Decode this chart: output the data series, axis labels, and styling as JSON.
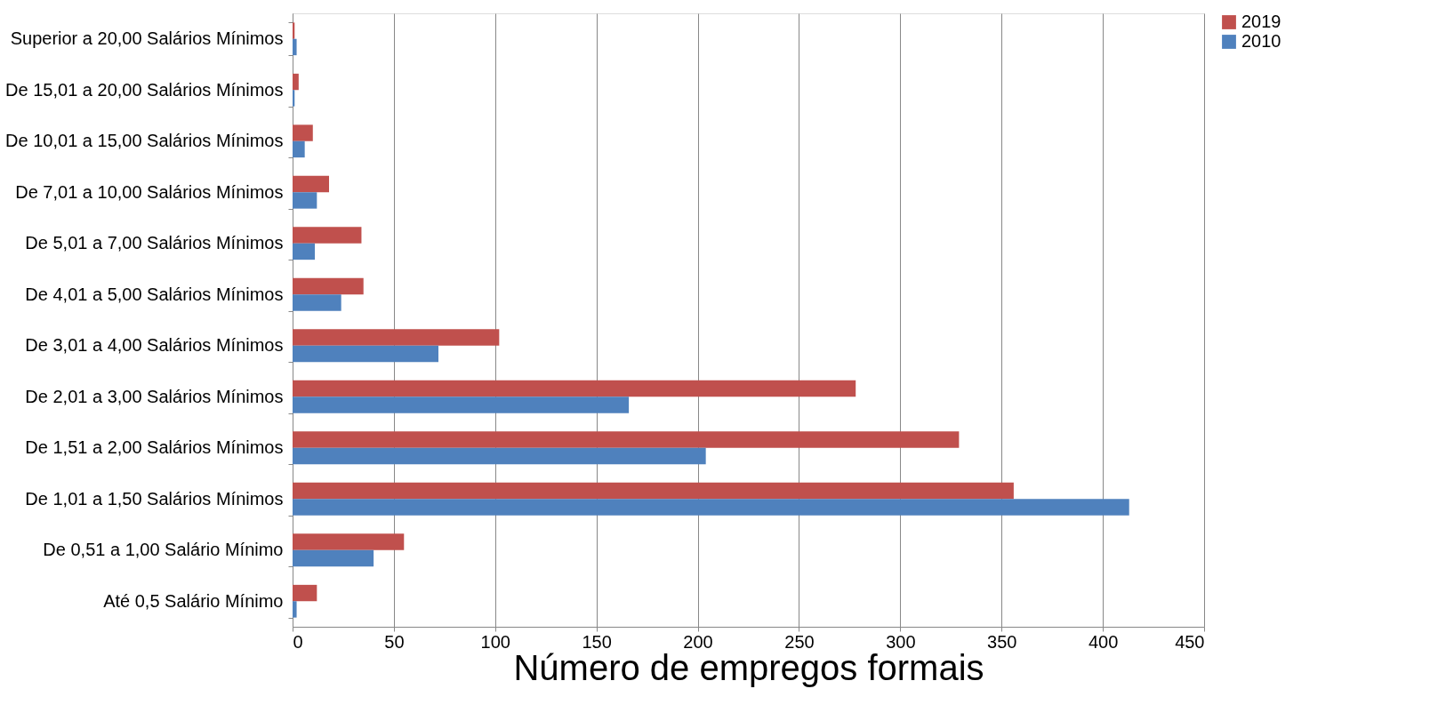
{
  "chart_data": {
    "type": "bar",
    "orientation": "horizontal",
    "xlabel": "Número de empregos formais",
    "categories": [
      "Superior a 20,00 Salários Mínimos",
      "De 15,01 a 20,00 Salários Mínimos",
      "De 10,01 a 15,00 Salários Mínimos",
      "De 7,01 a 10,00 Salários Mínimos",
      "De 5,01 a 7,00 Salários Mínimos",
      "De 4,01 a 5,00 Salários Mínimos",
      "De 3,01 a 4,00 Salários Mínimos",
      "De 2,01 a 3,00 Salários Mínimos",
      "De 1,51 a 2,00 Salários Mínimos",
      "De 1,01 a 1,50 Salários Mínimos",
      "De 0,51 a 1,00 Salário Mínimo",
      "Até 0,5 Salário Mínimo"
    ],
    "series": [
      {
        "name": "2019",
        "color": "#c0504d",
        "values": [
          1,
          3,
          10,
          18,
          34,
          35,
          102,
          278,
          329,
          356,
          55,
          12
        ]
      },
      {
        "name": "2010",
        "color": "#4f81bd",
        "values": [
          2,
          1,
          6,
          12,
          11,
          24,
          72,
          166,
          204,
          413,
          40,
          2
        ]
      }
    ],
    "xlim": [
      0,
      450
    ],
    "xticks": [
      0,
      50,
      100,
      150,
      200,
      250,
      300,
      350,
      400,
      450
    ],
    "grid": "x",
    "legend": "right"
  }
}
